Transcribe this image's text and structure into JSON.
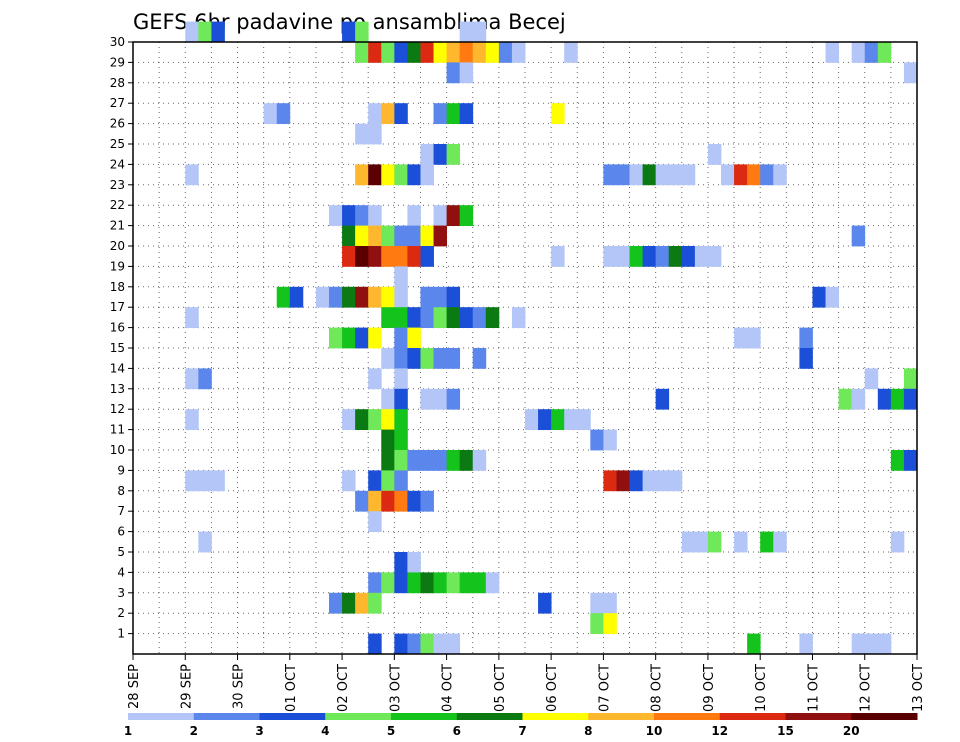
{
  "chart_data": {
    "type": "heatmap",
    "title": "GEFS 6hr padavine po ansamblima Becej",
    "xlabel": "",
    "ylabel": "",
    "x_ticks": [
      "28 SEP",
      "29 SEP",
      "30 SEP",
      "01 OCT",
      "02 OCT",
      "03 OCT",
      "04 OCT",
      "05 OCT",
      "06 OCT",
      "07 OCT",
      "08 OCT",
      "09 OCT",
      "10 OCT",
      "11 OCT",
      "12 OCT",
      "13 OCT"
    ],
    "x_range_steps": [
      0,
      60
    ],
    "step_hours": 6,
    "y_ticks": [
      1,
      2,
      3,
      4,
      5,
      6,
      7,
      8,
      9,
      10,
      11,
      12,
      13,
      14,
      15,
      16,
      17,
      18,
      19,
      20,
      21,
      22,
      23,
      24,
      25,
      26,
      27,
      28,
      29,
      30
    ],
    "ylim": [
      0,
      30
    ],
    "grid": true,
    "colorbar": {
      "placement": "bottom",
      "labels": [
        "1",
        "2",
        "3",
        "4",
        "5",
        "6",
        "7",
        "8",
        "10",
        "12",
        "15",
        "20"
      ],
      "colors": [
        "#b3c6f7",
        "#5b86eb",
        "#1c4fd8",
        "#6fe85a",
        "#14c41c",
        "#0c7a12",
        "#ffff00",
        "#ffb72e",
        "#ff7a10",
        "#dc2a12",
        "#901010",
        "#5a0000"
      ]
    },
    "cells": [
      [
        30,
        4,
        0
      ],
      [
        30,
        5,
        3
      ],
      [
        30,
        6,
        2
      ],
      [
        30,
        16,
        2
      ],
      [
        30,
        17,
        3
      ],
      [
        30,
        25,
        0
      ],
      [
        30,
        26,
        0
      ],
      [
        29,
        17,
        3
      ],
      [
        29,
        18,
        9
      ],
      [
        29,
        19,
        3
      ],
      [
        29,
        20,
        2
      ],
      [
        29,
        21,
        5
      ],
      [
        29,
        22,
        9
      ],
      [
        29,
        23,
        6
      ],
      [
        29,
        24,
        7
      ],
      [
        29,
        25,
        8
      ],
      [
        29,
        26,
        7
      ],
      [
        29,
        27,
        6
      ],
      [
        29,
        28,
        1
      ],
      [
        29,
        29,
        0
      ],
      [
        29,
        33,
        0
      ],
      [
        29,
        53,
        0
      ],
      [
        29,
        55,
        0
      ],
      [
        29,
        56,
        1
      ],
      [
        29,
        57,
        3
      ],
      [
        28,
        24,
        1
      ],
      [
        28,
        25,
        0
      ],
      [
        28,
        59,
        0
      ],
      [
        26,
        10,
        0
      ],
      [
        26,
        11,
        1
      ],
      [
        26,
        18,
        0
      ],
      [
        26,
        19,
        7
      ],
      [
        26,
        20,
        2
      ],
      [
        26,
        23,
        1
      ],
      [
        26,
        24,
        4
      ],
      [
        26,
        25,
        2
      ],
      [
        26,
        32,
        6
      ],
      [
        25,
        17,
        0
      ],
      [
        25,
        18,
        0
      ],
      [
        24,
        22,
        0
      ],
      [
        24,
        23,
        2
      ],
      [
        24,
        24,
        3
      ],
      [
        24,
        44,
        0
      ],
      [
        23,
        4,
        0
      ],
      [
        23,
        17,
        7
      ],
      [
        23,
        18,
        11
      ],
      [
        23,
        19,
        6
      ],
      [
        23,
        20,
        3
      ],
      [
        23,
        21,
        2
      ],
      [
        23,
        22,
        0
      ],
      [
        23,
        36,
        1
      ],
      [
        23,
        37,
        1
      ],
      [
        23,
        38,
        0
      ],
      [
        23,
        39,
        5
      ],
      [
        23,
        40,
        0
      ],
      [
        23,
        41,
        0
      ],
      [
        23,
        42,
        0
      ],
      [
        23,
        45,
        0
      ],
      [
        23,
        46,
        9
      ],
      [
        23,
        47,
        8
      ],
      [
        23,
        48,
        1
      ],
      [
        23,
        49,
        0
      ],
      [
        21,
        15,
        0
      ],
      [
        21,
        16,
        2
      ],
      [
        21,
        17,
        1
      ],
      [
        21,
        18,
        0
      ],
      [
        21,
        21,
        0
      ],
      [
        21,
        23,
        0
      ],
      [
        21,
        24,
        10
      ],
      [
        21,
        25,
        4
      ],
      [
        20,
        16,
        5
      ],
      [
        20,
        17,
        6
      ],
      [
        20,
        18,
        7
      ],
      [
        20,
        19,
        3
      ],
      [
        20,
        20,
        1
      ],
      [
        20,
        21,
        1
      ],
      [
        20,
        22,
        6
      ],
      [
        20,
        23,
        10
      ],
      [
        20,
        55,
        1
      ],
      [
        19,
        16,
        9
      ],
      [
        19,
        17,
        11
      ],
      [
        19,
        18,
        10
      ],
      [
        19,
        19,
        8
      ],
      [
        19,
        20,
        8
      ],
      [
        19,
        21,
        9
      ],
      [
        19,
        22,
        2
      ],
      [
        19,
        32,
        0
      ],
      [
        19,
        36,
        0
      ],
      [
        19,
        37,
        0
      ],
      [
        19,
        38,
        4
      ],
      [
        19,
        39,
        2
      ],
      [
        19,
        40,
        1
      ],
      [
        19,
        41,
        5
      ],
      [
        19,
        42,
        2
      ],
      [
        19,
        43,
        0
      ],
      [
        19,
        44,
        0
      ],
      [
        18,
        20,
        0
      ],
      [
        17,
        11,
        4
      ],
      [
        17,
        12,
        2
      ],
      [
        17,
        14,
        0
      ],
      [
        17,
        15,
        1
      ],
      [
        17,
        16,
        5
      ],
      [
        17,
        17,
        10
      ],
      [
        17,
        18,
        7
      ],
      [
        17,
        19,
        6
      ],
      [
        17,
        20,
        0
      ],
      [
        17,
        22,
        1
      ],
      [
        17,
        23,
        1
      ],
      [
        17,
        24,
        2
      ],
      [
        17,
        52,
        2
      ],
      [
        17,
        53,
        0
      ],
      [
        16,
        4,
        0
      ],
      [
        16,
        19,
        4
      ],
      [
        16,
        20,
        4
      ],
      [
        16,
        21,
        2
      ],
      [
        16,
        22,
        1
      ],
      [
        16,
        23,
        3
      ],
      [
        16,
        24,
        5
      ],
      [
        16,
        25,
        2
      ],
      [
        16,
        26,
        1
      ],
      [
        16,
        27,
        5
      ],
      [
        16,
        29,
        0
      ],
      [
        15,
        15,
        3
      ],
      [
        15,
        16,
        4
      ],
      [
        15,
        17,
        2
      ],
      [
        15,
        18,
        6
      ],
      [
        15,
        20,
        1
      ],
      [
        15,
        21,
        6
      ],
      [
        15,
        46,
        0
      ],
      [
        15,
        47,
        0
      ],
      [
        15,
        51,
        1
      ],
      [
        14,
        19,
        0
      ],
      [
        14,
        20,
        1
      ],
      [
        14,
        21,
        2
      ],
      [
        14,
        22,
        3
      ],
      [
        14,
        23,
        1
      ],
      [
        14,
        24,
        1
      ],
      [
        14,
        26,
        1
      ],
      [
        14,
        51,
        2
      ],
      [
        13,
        4,
        0
      ],
      [
        13,
        5,
        1
      ],
      [
        13,
        18,
        0
      ],
      [
        13,
        20,
        0
      ],
      [
        13,
        56,
        0
      ],
      [
        13,
        59,
        3
      ],
      [
        12,
        19,
        0
      ],
      [
        12,
        20,
        2
      ],
      [
        12,
        22,
        0
      ],
      [
        12,
        23,
        0
      ],
      [
        12,
        24,
        1
      ],
      [
        12,
        40,
        2
      ],
      [
        12,
        54,
        3
      ],
      [
        12,
        55,
        0
      ],
      [
        12,
        57,
        2
      ],
      [
        12,
        58,
        4
      ],
      [
        12,
        59,
        2
      ],
      [
        11,
        4,
        0
      ],
      [
        11,
        16,
        0
      ],
      [
        11,
        17,
        5
      ],
      [
        11,
        18,
        3
      ],
      [
        11,
        19,
        6
      ],
      [
        11,
        20,
        4
      ],
      [
        11,
        30,
        0
      ],
      [
        11,
        31,
        2
      ],
      [
        11,
        32,
        4
      ],
      [
        11,
        33,
        0
      ],
      [
        11,
        34,
        0
      ],
      [
        10,
        19,
        5
      ],
      [
        10,
        20,
        4
      ],
      [
        10,
        35,
        1
      ],
      [
        10,
        36,
        0
      ],
      [
        9,
        19,
        5
      ],
      [
        9,
        20,
        3
      ],
      [
        9,
        21,
        1
      ],
      [
        9,
        22,
        1
      ],
      [
        9,
        23,
        1
      ],
      [
        9,
        24,
        4
      ],
      [
        9,
        25,
        5
      ],
      [
        9,
        26,
        0
      ],
      [
        9,
        58,
        4
      ],
      [
        9,
        59,
        2
      ],
      [
        8,
        4,
        0
      ],
      [
        8,
        5,
        0
      ],
      [
        8,
        6,
        0
      ],
      [
        8,
        16,
        0
      ],
      [
        8,
        18,
        2
      ],
      [
        8,
        19,
        3
      ],
      [
        8,
        20,
        1
      ],
      [
        8,
        36,
        9
      ],
      [
        8,
        37,
        10
      ],
      [
        8,
        38,
        2
      ],
      [
        8,
        39,
        0
      ],
      [
        8,
        40,
        0
      ],
      [
        8,
        41,
        0
      ],
      [
        7,
        17,
        1
      ],
      [
        7,
        18,
        7
      ],
      [
        7,
        19,
        9
      ],
      [
        7,
        20,
        8
      ],
      [
        7,
        21,
        2
      ],
      [
        7,
        22,
        1
      ],
      [
        6,
        18,
        0
      ],
      [
        5,
        5,
        0
      ],
      [
        5,
        42,
        0
      ],
      [
        5,
        43,
        0
      ],
      [
        5,
        44,
        3
      ],
      [
        5,
        46,
        0
      ],
      [
        5,
        48,
        4
      ],
      [
        5,
        49,
        0
      ],
      [
        5,
        58,
        0
      ],
      [
        4,
        20,
        2
      ],
      [
        4,
        21,
        0
      ],
      [
        3,
        18,
        1
      ],
      [
        3,
        19,
        3
      ],
      [
        3,
        20,
        2
      ],
      [
        3,
        21,
        4
      ],
      [
        3,
        22,
        5
      ],
      [
        3,
        23,
        4
      ],
      [
        3,
        24,
        3
      ],
      [
        3,
        25,
        4
      ],
      [
        3,
        26,
        4
      ],
      [
        3,
        27,
        0
      ],
      [
        2,
        15,
        1
      ],
      [
        2,
        16,
        5
      ],
      [
        2,
        17,
        7
      ],
      [
        2,
        18,
        3
      ],
      [
        2,
        31,
        2
      ],
      [
        2,
        35,
        0
      ],
      [
        2,
        36,
        0
      ],
      [
        1,
        35,
        3
      ],
      [
        1,
        36,
        6
      ],
      [
        0,
        18,
        2
      ],
      [
        0,
        20,
        2
      ],
      [
        0,
        21,
        1
      ],
      [
        0,
        22,
        3
      ],
      [
        0,
        23,
        0
      ],
      [
        0,
        24,
        0
      ],
      [
        0,
        47,
        4
      ],
      [
        0,
        51,
        0
      ],
      [
        0,
        55,
        0
      ],
      [
        0,
        56,
        0
      ],
      [
        0,
        57,
        0
      ]
    ]
  }
}
